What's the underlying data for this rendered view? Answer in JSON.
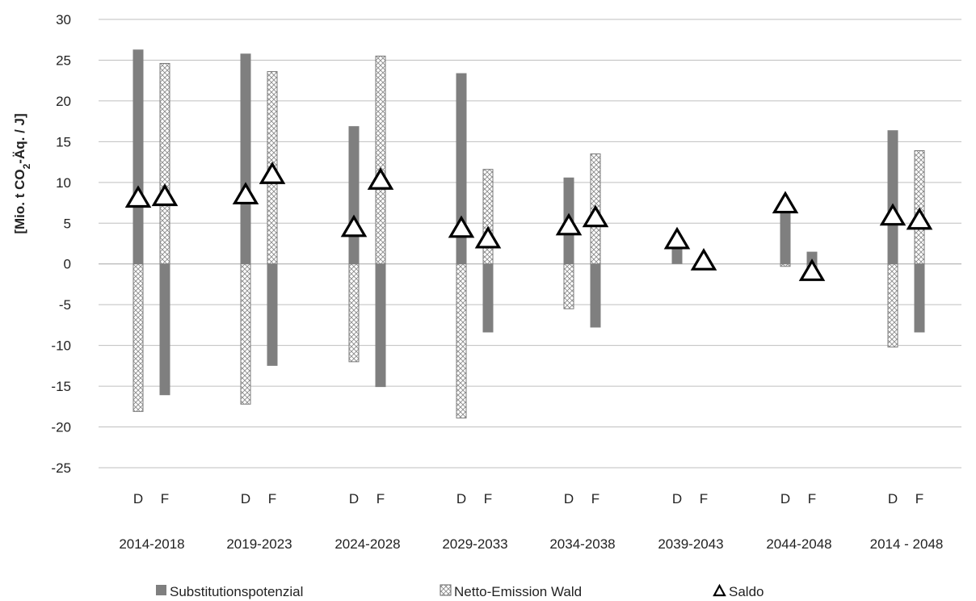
{
  "chart_data": {
    "type": "bar",
    "ylabel_prefix": "[Mio. t CO",
    "ylabel_sub": "2",
    "ylabel_suffix": "-Äq. / J]",
    "ylim": [
      -25,
      30
    ],
    "yticks": [
      -25,
      -20,
      -15,
      -10,
      -5,
      0,
      5,
      10,
      15,
      20,
      25,
      30
    ],
    "grid": true,
    "legend_position": "bottom",
    "colors": {
      "substitution": "#7f7f7f",
      "netto": "#ffffff",
      "hatch": "#8a8a8a",
      "saldo": "#000000"
    },
    "periods": [
      "2014-2018",
      "2019-2023",
      "2024-2028",
      "2029-2033",
      "2034-2038",
      "2039-2043",
      "2044-2048",
      "2014 - 2048"
    ],
    "subcategories": [
      "D",
      "F"
    ],
    "series": [
      {
        "name": "Substitutionspotenzial",
        "values": [
          [
            26.3,
            -16.1
          ],
          [
            25.8,
            -12.5
          ],
          [
            16.9,
            -15.1
          ],
          [
            23.4,
            -8.4
          ],
          [
            10.6,
            -7.8
          ],
          [
            3.2,
            0.5
          ],
          [
            7.6,
            1.5
          ],
          [
            16.4,
            -8.4
          ]
        ]
      },
      {
        "name": "Netto-Emission Wald",
        "values": [
          [
            -18.1,
            24.6
          ],
          [
            -17.2,
            23.6
          ],
          [
            -12.0,
            25.5
          ],
          [
            -18.9,
            11.6
          ],
          [
            -5.5,
            13.5
          ],
          [
            0.0,
            0.0
          ],
          [
            -0.3,
            -2.0
          ],
          [
            -10.2,
            13.9
          ]
        ]
      },
      {
        "name": "Saldo",
        "values": [
          [
            8.2,
            8.4
          ],
          [
            8.6,
            11.1
          ],
          [
            4.6,
            10.4
          ],
          [
            4.5,
            3.2
          ],
          [
            4.8,
            5.8
          ],
          [
            3.1,
            0.5
          ],
          [
            7.5,
            -0.8
          ],
          [
            6.0,
            5.5
          ]
        ]
      }
    ]
  }
}
